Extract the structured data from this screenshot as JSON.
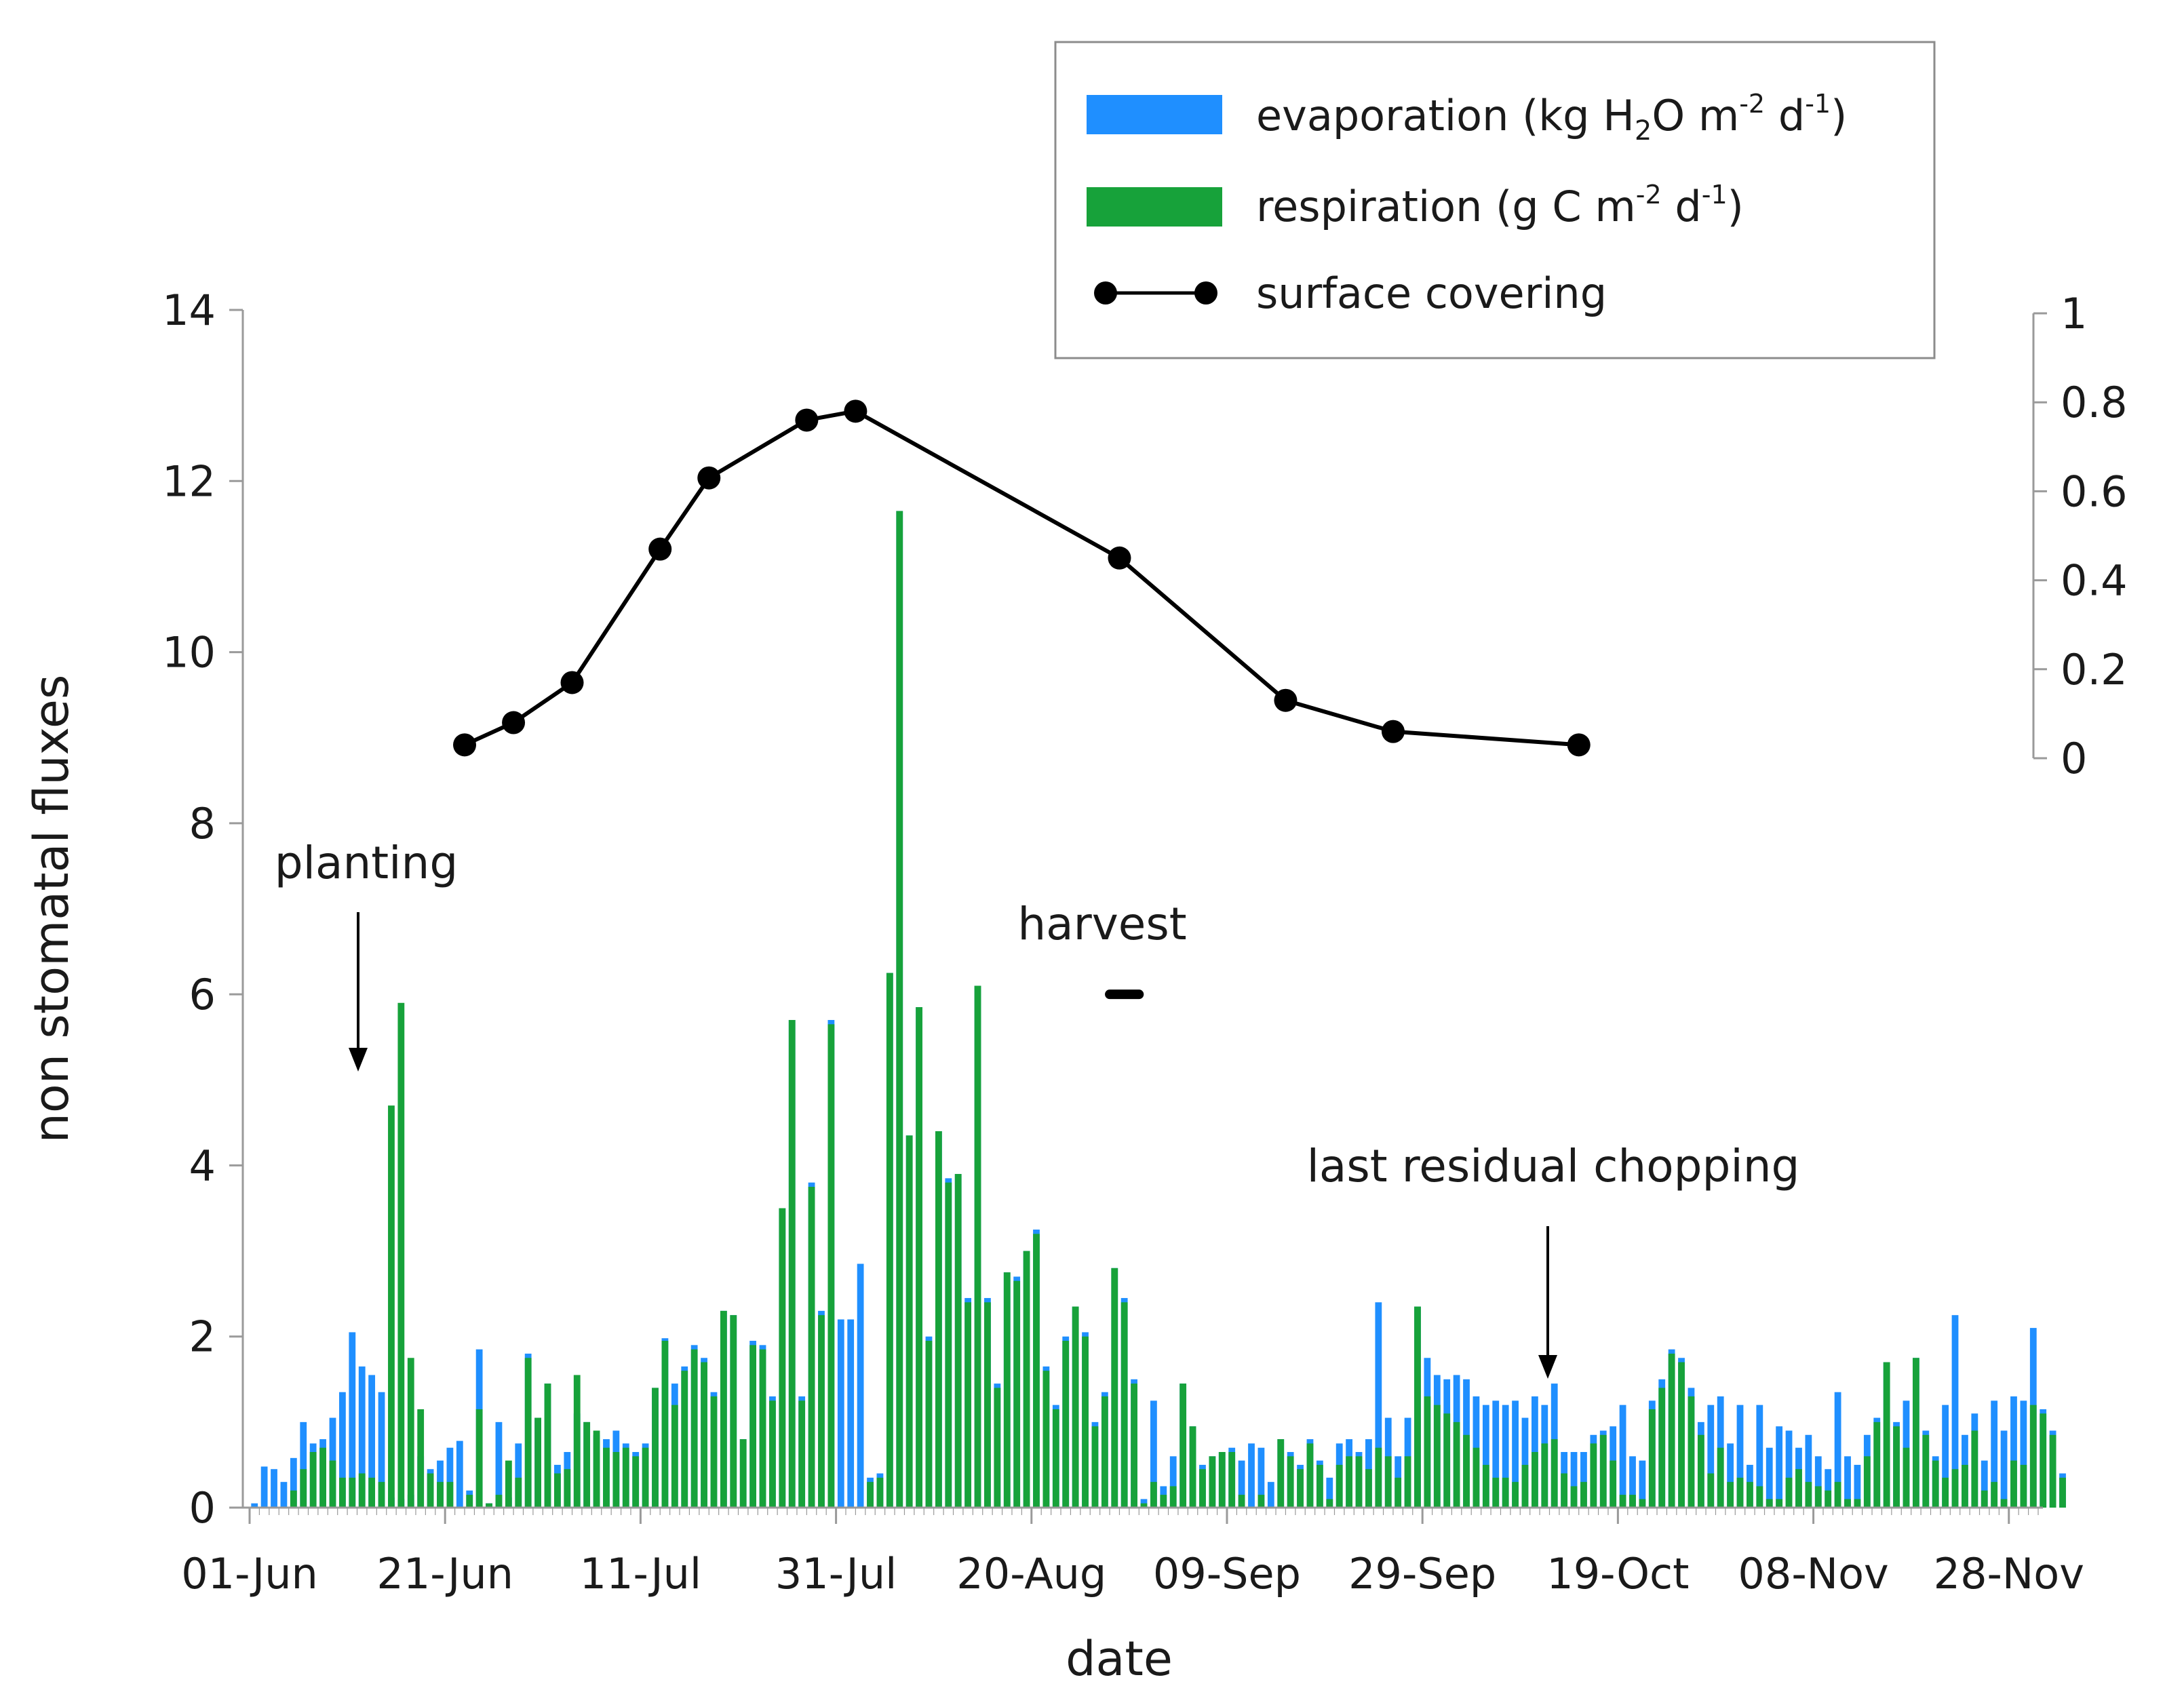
{
  "chart_data": {
    "type": "bar",
    "title": "",
    "xlabel": "date",
    "ylabel": "non stomatal fluxes",
    "ylim": [
      0,
      14
    ],
    "y_ticks": [
      "0",
      "2",
      "4",
      "6",
      "8",
      "10",
      "12",
      "14"
    ],
    "y2lim": [
      0,
      1
    ],
    "y2_ticks": [
      "0",
      "0.2",
      "0.4",
      "0.6",
      "0.8",
      "1"
    ],
    "x_tick_labels": [
      "01-Jun",
      "21-Jun",
      "11-Jul",
      "31-Jul",
      "20-Aug",
      "09-Sep",
      "29-Sep",
      "19-Oct",
      "08-Nov",
      "28-Nov"
    ],
    "x_tick_days": [
      0,
      20,
      40,
      60,
      80,
      100,
      120,
      140,
      160,
      180
    ],
    "day_range": [
      0,
      183
    ],
    "legend": {
      "evaporation_prefix": "evaporation (kg H",
      "evaporation_sub": "2",
      "evaporation_mid": "O m",
      "evaporation_sup1": "-2",
      "evaporation_d": " d",
      "evaporation_sup2": "-1",
      "evaporation_end": ")",
      "respiration_prefix": "respiration (g C m",
      "respiration_sup1": "-2",
      "respiration_d": " d",
      "respiration_sup2": "-1",
      "respiration_end": ")",
      "surface": "surface covering"
    },
    "colors": {
      "evaporation": "#1f8fff",
      "respiration": "#17a23a",
      "surface": "#000000",
      "axis": "#9a9a9a"
    },
    "annotations": {
      "planting": "planting",
      "harvest": "harvest",
      "chopping": "last residual chopping",
      "harvest_level": 6,
      "harvest_days": [
        88,
        91
      ]
    },
    "evaporation": [
      0.05,
      0.48,
      0.45,
      0.3,
      0.58,
      1.0,
      0.75,
      0.8,
      1.05,
      1.35,
      2.05,
      1.65,
      1.55,
      1.35,
      0.12,
      0.1,
      0.15,
      0.6,
      0.45,
      0.55,
      0.7,
      0.78,
      0.2,
      1.85,
      0.05,
      1.0,
      0.12,
      0.75,
      1.8,
      1.05,
      1.45,
      0.5,
      0.65,
      1.1,
      1.0,
      0.85,
      0.8,
      0.9,
      0.75,
      0.65,
      0.75,
      1.4,
      1.98,
      1.45,
      1.65,
      1.9,
      1.75,
      1.35,
      2.3,
      2.25,
      0.8,
      1.95,
      1.9,
      1.3,
      3.5,
      5.7,
      1.3,
      3.8,
      2.3,
      5.7,
      2.2,
      2.2,
      2.85,
      0.35,
      0.4,
      6.25,
      11.65,
      4.35,
      5.85,
      2.0,
      4.4,
      3.85,
      3.9,
      2.45,
      6.1,
      2.45,
      1.45,
      2.75,
      2.7,
      3.0,
      3.25,
      1.65,
      1.2,
      2.0,
      2.35,
      2.05,
      1.0,
      1.35,
      2.8,
      2.45,
      1.5,
      0.1,
      1.25,
      0.25,
      0.6,
      1.45,
      0.95,
      0.5,
      0.6,
      0.65,
      0.7,
      0.55,
      0.75,
      0.7,
      0.3,
      0.8,
      0.65,
      0.5,
      0.8,
      0.55,
      0.35,
      0.75,
      0.8,
      0.65,
      0.8,
      2.4,
      1.05,
      0.6,
      1.05,
      2.35,
      1.75,
      1.55,
      1.5,
      1.55,
      1.5,
      1.3,
      1.2,
      1.25,
      1.2,
      1.25,
      1.05,
      1.3,
      1.2,
      1.45,
      0.65,
      0.65,
      0.65,
      0.85,
      0.9,
      0.95,
      1.2,
      0.6,
      0.55,
      1.25,
      1.5,
      1.85,
      1.75,
      1.4,
      1.0,
      1.2,
      1.3,
      0.75,
      1.2,
      0.5,
      1.2,
      0.7,
      0.95,
      0.9,
      0.7,
      0.85,
      0.6,
      0.45,
      1.35,
      0.6,
      0.5,
      0.85,
      1.05,
      1.7,
      1.0,
      1.25,
      1.75,
      0.9,
      0.6,
      1.2,
      2.25,
      0.85,
      1.1,
      0.55,
      1.25,
      0.9,
      1.3,
      1.25,
      2.1,
      1.15,
      0.9,
      0.4
    ],
    "respiration": [
      0.0,
      0.0,
      0.0,
      0.0,
      0.2,
      0.45,
      0.65,
      0.7,
      0.55,
      0.35,
      0.35,
      0.4,
      0.35,
      0.3,
      4.7,
      5.9,
      1.75,
      1.15,
      0.4,
      0.3,
      0.3,
      0.0,
      0.15,
      1.15,
      0.05,
      0.15,
      0.55,
      0.35,
      1.75,
      1.05,
      1.45,
      0.4,
      0.45,
      1.55,
      1.0,
      0.9,
      0.7,
      0.65,
      0.7,
      0.6,
      0.7,
      1.4,
      1.95,
      1.2,
      1.6,
      1.85,
      1.7,
      1.3,
      2.3,
      2.25,
      0.8,
      1.9,
      1.85,
      1.25,
      3.5,
      5.7,
      1.25,
      3.75,
      2.25,
      5.65,
      0.0,
      0.0,
      0.0,
      0.3,
      0.35,
      6.25,
      11.65,
      4.35,
      5.85,
      1.95,
      4.4,
      3.8,
      3.9,
      2.4,
      6.1,
      2.4,
      1.4,
      2.75,
      2.65,
      3.0,
      3.2,
      1.6,
      1.15,
      1.95,
      2.35,
      2.0,
      0.95,
      1.3,
      2.8,
      2.4,
      1.45,
      0.05,
      0.3,
      0.15,
      0.25,
      1.45,
      0.95,
      0.45,
      0.6,
      0.65,
      0.65,
      0.15,
      0.0,
      0.15,
      0.0,
      0.8,
      0.6,
      0.45,
      0.75,
      0.5,
      0.1,
      0.5,
      0.6,
      0.6,
      0.45,
      0.7,
      0.6,
      0.35,
      0.6,
      2.35,
      1.3,
      1.2,
      1.1,
      1.0,
      0.85,
      0.7,
      0.5,
      0.35,
      0.35,
      0.3,
      0.5,
      0.65,
      0.75,
      0.8,
      0.4,
      0.25,
      0.3,
      0.75,
      0.85,
      0.55,
      0.15,
      0.15,
      0.1,
      1.15,
      1.4,
      1.8,
      1.7,
      1.3,
      0.85,
      0.4,
      0.7,
      0.3,
      0.35,
      0.3,
      0.25,
      0.1,
      0.1,
      0.35,
      0.45,
      0.3,
      0.25,
      0.2,
      0.3,
      0.1,
      0.1,
      0.6,
      1.0,
      1.7,
      0.95,
      0.7,
      1.75,
      0.85,
      0.55,
      0.35,
      0.45,
      0.5,
      0.9,
      0.2,
      0.3,
      0.1,
      0.55,
      0.5,
      1.2,
      1.1,
      0.85,
      0.35
    ],
    "surface_covering": {
      "days": [
        22,
        27,
        33,
        42,
        47,
        57,
        62,
        89,
        106,
        117,
        136
      ],
      "values": [
        0.03,
        0.08,
        0.17,
        0.47,
        0.63,
        0.76,
        0.78,
        0.45,
        0.13,
        0.06,
        0.03
      ]
    }
  }
}
